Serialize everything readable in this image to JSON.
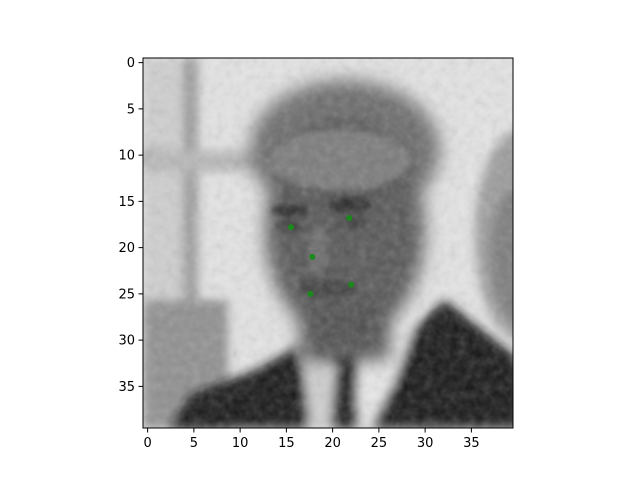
{
  "chart_data": {
    "type": "scatter",
    "title": "",
    "xlabel": "",
    "ylabel": "",
    "image_shape": [
      40,
      40
    ],
    "colormap": "gray",
    "xlim": [
      -0.5,
      39.5
    ],
    "ylim": [
      39.5,
      -0.5
    ],
    "y_axis_inverted": true,
    "grid": false,
    "legend": "none",
    "x_ticks": [
      0,
      5,
      10,
      15,
      20,
      25,
      30,
      35
    ],
    "y_ticks": [
      0,
      5,
      10,
      15,
      20,
      25,
      30,
      35
    ],
    "series": [
      {
        "color": "#1a8a1a",
        "points": [
          {
            "x": 15.5,
            "y": 17.8
          },
          {
            "x": 21.8,
            "y": 16.8
          },
          {
            "x": 17.8,
            "y": 21.0
          },
          {
            "x": 17.6,
            "y": 25.0
          },
          {
            "x": 22.0,
            "y": 24.0
          }
        ]
      }
    ]
  }
}
